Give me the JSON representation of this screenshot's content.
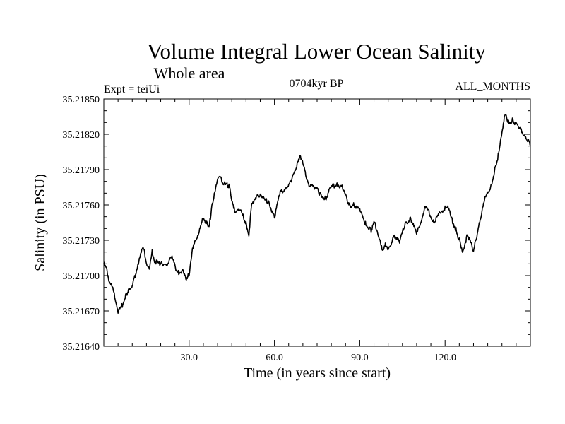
{
  "chart_data": {
    "type": "line",
    "title": "Volume Integral Lower Ocean Salinity",
    "subtitle": "Whole area",
    "left_label": "Expt = teiUi",
    "center_label": "0704kyr BP",
    "right_label": "ALL_MONTHS",
    "xlabel": "Time (in years since start)",
    "ylabel": "Salinity (in PSU)",
    "xlim": [
      0,
      150
    ],
    "ylim": [
      35.2164,
      35.2185
    ],
    "xticks": [
      30,
      60,
      90,
      120
    ],
    "xtick_labels": [
      "30.0",
      "60.0",
      "90.0",
      "120.0"
    ],
    "yticks": [
      35.2164,
      35.2167,
      35.217,
      35.2173,
      35.2176,
      35.2179,
      35.2182,
      35.2185
    ],
    "ytick_labels": [
      "35.21640",
      "35.21670",
      "35.21700",
      "35.21730",
      "35.21760",
      "35.21790",
      "35.21820",
      "35.21850"
    ],
    "line_color": "#000000",
    "series": [
      {
        "name": "salinity",
        "x": [
          0,
          1,
          2,
          3,
          4,
          5,
          6,
          8,
          10,
          12,
          13,
          14,
          15,
          16,
          17,
          18,
          20,
          22,
          24,
          26,
          28,
          29,
          30,
          31,
          32,
          33,
          34,
          35,
          36,
          37,
          38,
          40,
          41,
          42,
          44,
          46,
          48,
          50,
          51,
          52,
          54,
          56,
          58,
          60,
          62,
          64,
          66,
          68,
          69,
          70,
          72,
          74,
          76,
          78,
          80,
          82,
          84,
          86,
          88,
          90,
          92,
          94,
          95,
          96,
          97,
          98,
          99,
          100,
          102,
          104,
          106,
          108,
          110,
          112,
          113,
          114,
          116,
          118,
          120,
          121,
          122,
          124,
          125,
          126,
          128,
          130,
          132,
          134,
          136,
          138,
          139,
          140,
          141,
          142,
          144,
          146,
          148,
          150
        ],
        "values": [
          35.2171,
          35.21705,
          35.21695,
          35.2169,
          35.2168,
          35.2167,
          35.21672,
          35.21685,
          35.2169,
          35.2171,
          35.2172,
          35.21722,
          35.21712,
          35.21705,
          35.2172,
          35.21712,
          35.2171,
          35.2171,
          35.21715,
          35.21702,
          35.21705,
          35.21695,
          35.21702,
          35.2172,
          35.21728,
          35.21735,
          35.2174,
          35.2175,
          35.21745,
          35.2174,
          35.2176,
          35.2178,
          35.21785,
          35.21778,
          35.21776,
          35.21755,
          35.21755,
          35.21745,
          35.21735,
          35.2176,
          35.2177,
          35.21765,
          35.21762,
          35.2175,
          35.2177,
          35.21775,
          35.2178,
          35.21795,
          35.21803,
          35.21795,
          35.21778,
          35.21775,
          35.2177,
          35.21765,
          35.21775,
          35.21778,
          35.21775,
          35.2176,
          35.2176,
          35.21755,
          35.21745,
          35.21738,
          35.21745,
          35.2174,
          35.2173,
          35.2172,
          35.21728,
          35.2172,
          35.21735,
          35.21728,
          35.21745,
          35.21748,
          35.21735,
          35.2175,
          35.2176,
          35.21755,
          35.21745,
          35.21752,
          35.21758,
          35.2176,
          35.2175,
          35.21738,
          35.2173,
          35.2172,
          35.21735,
          35.2172,
          35.21745,
          35.21765,
          35.21775,
          35.21795,
          35.21805,
          35.21822,
          35.21838,
          35.2183,
          35.21832,
          35.21825,
          35.2182,
          35.2181
        ]
      }
    ]
  }
}
